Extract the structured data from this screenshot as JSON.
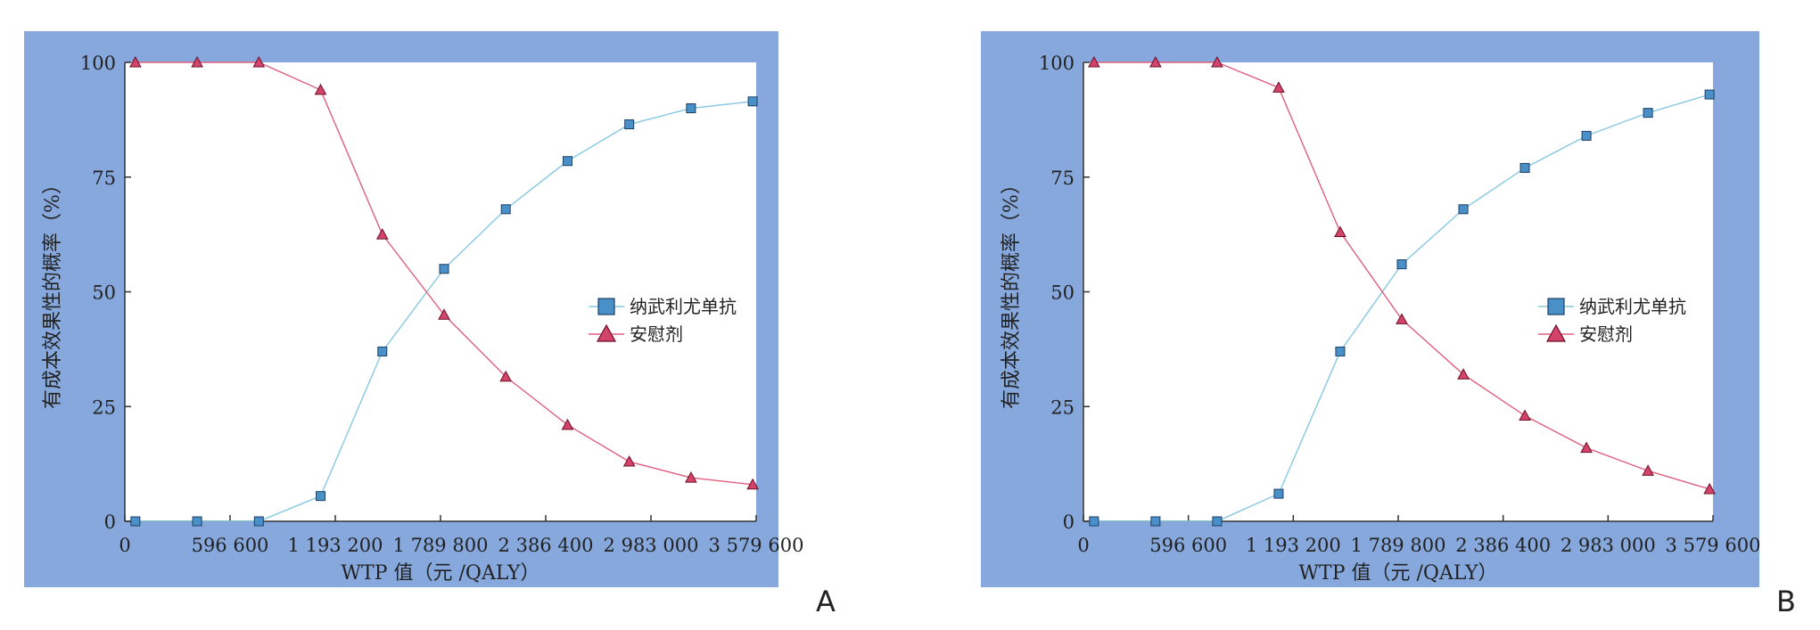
{
  "panels": [
    {
      "panel_label": "A",
      "legend": [
        {
          "label": "纳武利尤单抗"
        },
        {
          "label": "安慰剂"
        }
      ]
    },
    {
      "panel_label": "B",
      "legend": [
        {
          "label": "纳武利尤单抗"
        },
        {
          "label": "安慰剂"
        }
      ]
    }
  ],
  "chart_data": [
    {
      "type": "line",
      "xlabel": "WTP 值（元 /QALY）",
      "ylabel": "有成本效果性的概率（%）",
      "xlim": [
        0,
        3579600
      ],
      "ylim": [
        0,
        100
      ],
      "xticks": [
        0,
        596600,
        1193200,
        1789800,
        2386400,
        2983000,
        3579600
      ],
      "xtick_labels": [
        "0",
        "596 600",
        "1 193 200",
        "1 789 800",
        "2 386 400",
        "2 983 000",
        "3 579 600"
      ],
      "yticks": [
        0,
        25,
        50,
        75,
        100
      ],
      "ytick_labels": [
        "0",
        "25",
        "50",
        "75",
        "100"
      ],
      "legend_position": "right",
      "grid": false,
      "x": [
        60000,
        410000,
        760000,
        1110000,
        1460000,
        1810000,
        2160000,
        2510000,
        2860000,
        3210000,
        3560000
      ],
      "series": [
        {
          "name": "纳武利尤单抗",
          "marker": "square",
          "color": "#4a90c8",
          "line_color": "#88c8e0",
          "values": [
            0,
            0,
            0,
            5.5,
            37,
            55,
            68,
            78.5,
            86.5,
            90,
            91.5
          ]
        },
        {
          "name": "安慰剂",
          "marker": "triangle",
          "color": "#d4436a",
          "line_color": "#e06080",
          "values": [
            100,
            100,
            100,
            94,
            62.5,
            45,
            31.5,
            21,
            13,
            9.5,
            8
          ]
        }
      ]
    },
    {
      "type": "line",
      "xlabel": "WTP 值（元 /QALY）",
      "ylabel": "有成本效果性的概率（%）",
      "xlim": [
        0,
        3579600
      ],
      "ylim": [
        0,
        100
      ],
      "xticks": [
        0,
        596600,
        1193200,
        1789800,
        2386400,
        2983000,
        3579600
      ],
      "xtick_labels": [
        "0",
        "596 600",
        "1 193 200",
        "1 789 800",
        "2 386 400",
        "2 983 000",
        "3 579 600"
      ],
      "yticks": [
        0,
        25,
        50,
        75,
        100
      ],
      "ytick_labels": [
        "0",
        "25",
        "50",
        "75",
        "100"
      ],
      "legend_position": "right",
      "grid": false,
      "x": [
        60000,
        410000,
        760000,
        1110000,
        1460000,
        1810000,
        2160000,
        2510000,
        2860000,
        3210000,
        3560000
      ],
      "series": [
        {
          "name": "纳武利尤单抗",
          "marker": "square",
          "color": "#4a90c8",
          "line_color": "#88c8e0",
          "values": [
            0,
            0,
            0,
            6,
            37,
            56,
            68,
            77,
            84,
            89,
            93
          ]
        },
        {
          "name": "安慰剂",
          "marker": "triangle",
          "color": "#d4436a",
          "line_color": "#e06080",
          "values": [
            100,
            100,
            100,
            94.5,
            63,
            44,
            32,
            23,
            16,
            11,
            7
          ]
        }
      ]
    }
  ]
}
